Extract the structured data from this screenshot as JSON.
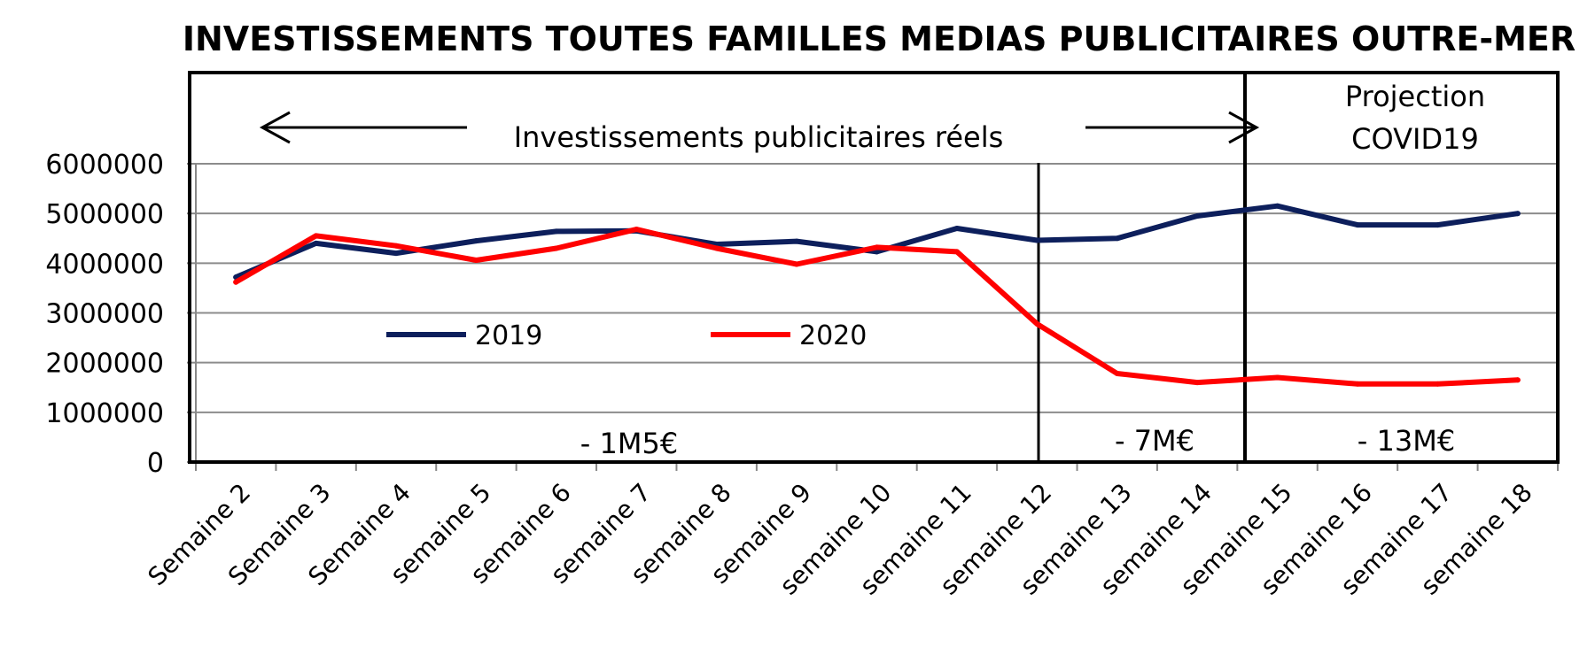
{
  "chart_data": {
    "type": "line",
    "title": "INVESTISSEMENTS TOUTES FAMILLES MEDIAS PUBLICITAIRES OUTRE-MER",
    "categories": [
      "Semaine 2",
      "Semaine 3",
      "Semaine 4",
      "semaine 5",
      "semaine 6",
      "semaine 7",
      "semaine 8",
      "semaine 9",
      "semaine 10",
      "semaine 11",
      "semaine 12",
      "semaine 13",
      "semaine 14",
      "semaine 15",
      "semaine 16",
      "semaine 17",
      "semaine 18"
    ],
    "ylim": [
      0,
      6000000
    ],
    "yticks": [
      "0",
      "1000000",
      "2000000",
      "3000000",
      "4000000",
      "5000000",
      "6000000"
    ],
    "grid": true,
    "series": [
      {
        "name": "2019",
        "color": "#0d1f5c",
        "values": [
          3720000,
          4400000,
          4200000,
          4450000,
          4640000,
          4650000,
          4380000,
          4440000,
          4230000,
          4700000,
          4460000,
          4500000,
          4950000,
          5150000,
          4770000,
          4770000,
          5000000
        ]
      },
      {
        "name": "2020",
        "color": "#ff0000",
        "values": [
          3620000,
          4550000,
          4350000,
          4060000,
          4300000,
          4680000,
          4300000,
          3980000,
          4320000,
          4230000,
          2780000,
          1780000,
          1600000,
          1700000,
          1570000,
          1570000,
          1650000
        ]
      }
    ],
    "annotations": {
      "real_label": "Investissements publicitaires réels",
      "projection_line1": "Projection",
      "projection_line2": "COVID19",
      "diff_1": "- 1M5€",
      "diff_2": "- 7M€",
      "diff_3": "- 13M€"
    }
  }
}
